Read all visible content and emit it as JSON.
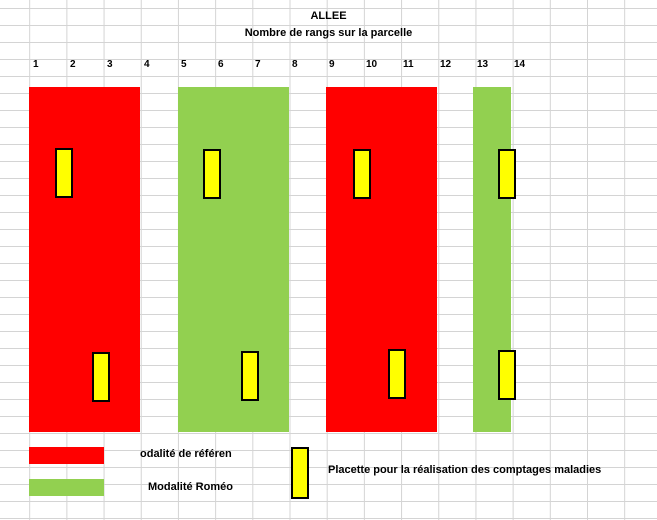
{
  "sheet": {
    "title": "ALLEE",
    "subtitle": "Nombre de rangs sur la parcelle",
    "row_numbers": [
      "1",
      "2",
      "3",
      "4",
      "5",
      "6",
      "7",
      "8",
      "9",
      "10",
      "11",
      "12",
      "13",
      "14"
    ]
  },
  "legend": {
    "reference_label": "Modalité de référence",
    "reference_visible": "odalité de référen",
    "romeo_label": "Modalité Roméo",
    "placette_label": "Placette pour la réalisation des comptages maladies"
  },
  "colors": {
    "reference": "#ff0000",
    "romeo": "#92d050",
    "placette": "#ffff00",
    "grid": "#d4d4d4"
  }
}
